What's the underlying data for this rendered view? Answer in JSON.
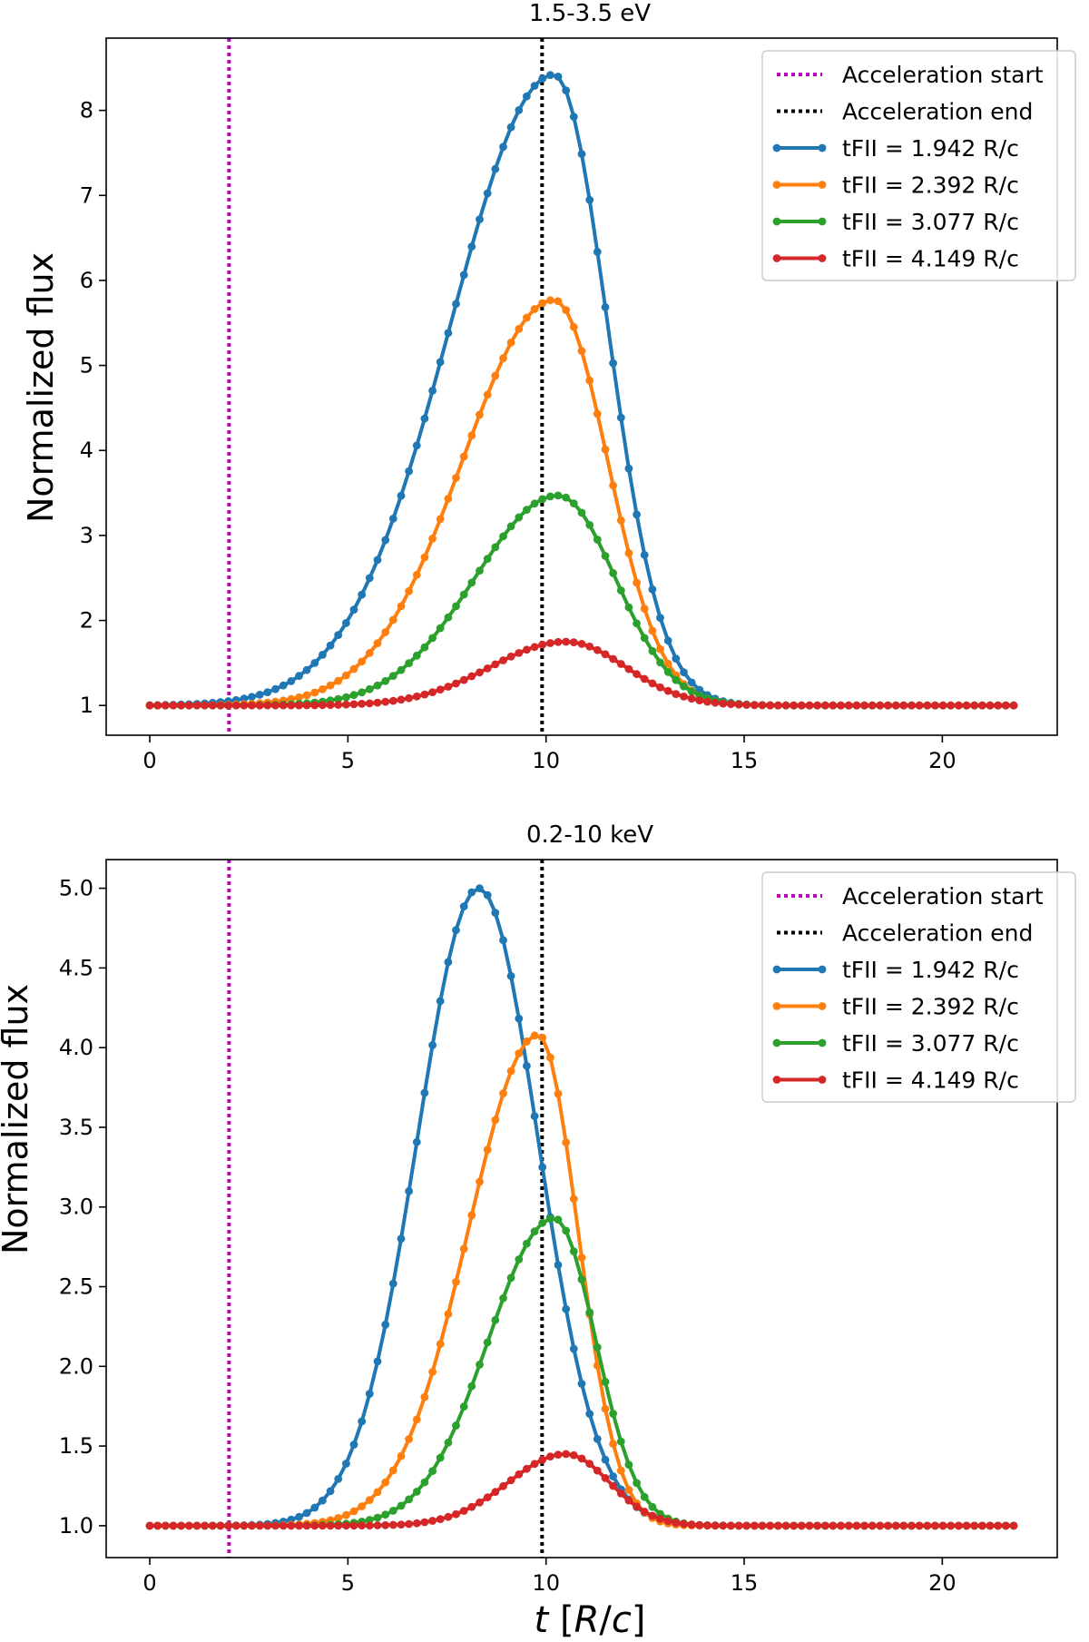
{
  "xlabel": "t [R/c]",
  "legend_labels": [
    "Acceleration start",
    "Acceleration end",
    "tFII = 1.942 R/c",
    "tFII = 2.392 R/c",
    "tFII = 3.077 R/c",
    "tFII = 4.149 R/c"
  ],
  "colors": {
    "accel_start": "#c000c0",
    "accel_end": "#000000",
    "s1": "#1f77b4",
    "s2": "#ff7f0e",
    "s3": "#2ca02c",
    "s4": "#d62728"
  },
  "chart_data": [
    {
      "type": "line",
      "title": "1.5-3.5 eV",
      "xlabel": "",
      "ylabel": "Normalized flux",
      "xlim": [
        -1.1,
        22.9
      ],
      "ylim": [
        0.65,
        8.85
      ],
      "xticks": [
        0,
        5,
        10,
        15,
        20
      ],
      "xtick_labels": [
        "0",
        "5",
        "10",
        "15",
        "20"
      ],
      "yticks": [
        1,
        2,
        3,
        4,
        5,
        6,
        7,
        8
      ],
      "ytick_labels": [
        "1",
        "2",
        "3",
        "4",
        "5",
        "6",
        "7",
        "8"
      ],
      "vlines": [
        {
          "name": "Acceleration start",
          "x": 2.0,
          "color": "#c000c0",
          "style": "dotted"
        },
        {
          "name": "Acceleration end",
          "x": 9.9,
          "color": "#000000",
          "style": "dotted"
        }
      ],
      "series": [
        {
          "name": "tFII = 1.942 R/c",
          "color": "#1f77b4",
          "peak_x": 10.2,
          "peak": 8.42,
          "sigma_left": 2.6,
          "sigma_right": 1.35,
          "points": [
            [
              0,
              1
            ],
            [
              2,
              1
            ],
            [
              4,
              1.01
            ],
            [
              5,
              1.28
            ],
            [
              6,
              2.05
            ],
            [
              7,
              3.5
            ],
            [
              8,
              5.3
            ],
            [
              9,
              6.9
            ],
            [
              10,
              8.25
            ],
            [
              10.2,
              8.42
            ],
            [
              10.5,
              8.3
            ],
            [
              11,
              7.55
            ],
            [
              12,
              4.6
            ],
            [
              13,
              2.3
            ],
            [
              14,
              1.35
            ],
            [
              15,
              1.1
            ],
            [
              16,
              1.03
            ],
            [
              18,
              1.0
            ],
            [
              21.8,
              1.0
            ]
          ]
        },
        {
          "name": "tFII = 2.392 R/c",
          "color": "#ff7f0e",
          "peak_x": 10.2,
          "peak": 5.77,
          "sigma_left": 2.3,
          "sigma_right": 1.35,
          "points": [
            [
              0,
              1
            ],
            [
              4,
              1
            ],
            [
              5,
              1.05
            ],
            [
              6,
              1.45
            ],
            [
              7,
              2.3
            ],
            [
              8,
              3.5
            ],
            [
              9,
              4.8
            ],
            [
              10,
              5.7
            ],
            [
              10.2,
              5.77
            ],
            [
              11,
              5.1
            ],
            [
              12,
              3.4
            ],
            [
              13,
              1.95
            ],
            [
              14,
              1.3
            ],
            [
              15,
              1.07
            ],
            [
              17,
              1.0
            ],
            [
              21.8,
              1.0
            ]
          ]
        },
        {
          "name": "tFII = 3.077 R/c",
          "color": "#2ca02c",
          "peak_x": 10.3,
          "peak": 3.47,
          "sigma_left": 2.1,
          "sigma_right": 1.45,
          "points": [
            [
              0,
              1
            ],
            [
              5,
              1
            ],
            [
              6,
              1.07
            ],
            [
              7,
              1.35
            ],
            [
              8,
              1.95
            ],
            [
              9,
              2.7
            ],
            [
              10,
              3.4
            ],
            [
              10.3,
              3.47
            ],
            [
              11,
              3.2
            ],
            [
              12,
              2.3
            ],
            [
              13,
              1.6
            ],
            [
              14,
              1.18
            ],
            [
              15,
              1.04
            ],
            [
              17,
              1.0
            ],
            [
              21.8,
              1.0
            ]
          ]
        },
        {
          "name": "tFII = 4.149 R/c",
          "color": "#d62728",
          "peak_x": 10.5,
          "peak": 1.75,
          "sigma_left": 1.9,
          "sigma_right": 1.5,
          "points": [
            [
              0,
              1
            ],
            [
              6,
              1
            ],
            [
              7,
              1.05
            ],
            [
              8,
              1.15
            ],
            [
              9,
              1.35
            ],
            [
              10,
              1.65
            ],
            [
              10.5,
              1.75
            ],
            [
              11,
              1.7
            ],
            [
              12,
              1.4
            ],
            [
              13,
              1.15
            ],
            [
              14,
              1.04
            ],
            [
              15,
              1.0
            ],
            [
              21.8,
              1.0
            ]
          ]
        }
      ]
    },
    {
      "type": "line",
      "title": "0.2-10 keV",
      "xlabel": "t [R/c]",
      "ylabel": "Normalized flux",
      "xlim": [
        -1.1,
        22.9
      ],
      "ylim": [
        0.8,
        5.18
      ],
      "xticks": [
        0,
        5,
        10,
        15,
        20
      ],
      "xtick_labels": [
        "0",
        "5",
        "10",
        "15",
        "20"
      ],
      "yticks": [
        1.0,
        1.5,
        2.0,
        2.5,
        3.0,
        3.5,
        4.0,
        4.5,
        5.0
      ],
      "ytick_labels": [
        "1.0",
        "1.5",
        "2.0",
        "2.5",
        "3.0",
        "3.5",
        "4.0",
        "4.5",
        "5.0"
      ],
      "vlines": [
        {
          "name": "Acceleration start",
          "x": 2.0,
          "color": "#c000c0",
          "style": "dotted"
        },
        {
          "name": "Acceleration end",
          "x": 9.9,
          "color": "#000000",
          "style": "dotted"
        }
      ],
      "series": [
        {
          "name": "tFII = 1.942 R/c",
          "color": "#1f77b4",
          "peak_x": 8.3,
          "peak": 5.0,
          "sigma_left": 1.55,
          "sigma_right": 1.5,
          "points": [
            [
              0,
              1
            ],
            [
              4,
              1
            ],
            [
              5,
              1.15
            ],
            [
              6,
              1.85
            ],
            [
              7,
              3.2
            ],
            [
              8,
              4.8
            ],
            [
              8.3,
              5.0
            ],
            [
              9,
              4.75
            ],
            [
              10,
              3.85
            ],
            [
              11,
              2.5
            ],
            [
              12,
              1.4
            ],
            [
              13,
              1.06
            ],
            [
              14,
              1.0
            ],
            [
              21.8,
              1.0
            ]
          ]
        },
        {
          "name": "tFII = 2.392 R/c",
          "color": "#ff7f0e",
          "peak_x": 9.8,
          "peak": 4.08,
          "sigma_left": 1.75,
          "sigma_right": 1.0,
          "points": [
            [
              0,
              1
            ],
            [
              4,
              1
            ],
            [
              5,
              1.03
            ],
            [
              6,
              1.35
            ],
            [
              7,
              2.05
            ],
            [
              8,
              2.95
            ],
            [
              9,
              3.75
            ],
            [
              9.8,
              4.08
            ],
            [
              10.5,
              3.75
            ],
            [
              11,
              3.3
            ],
            [
              12,
              1.9
            ],
            [
              13,
              1.15
            ],
            [
              14,
              1.02
            ],
            [
              21.8,
              1.0
            ]
          ]
        },
        {
          "name": "tFII = 3.077 R/c",
          "color": "#2ca02c",
          "peak_x": 10.2,
          "peak": 2.93,
          "sigma_left": 1.65,
          "sigma_right": 1.05,
          "points": [
            [
              0,
              1
            ],
            [
              5,
              1
            ],
            [
              6,
              1.05
            ],
            [
              7,
              1.35
            ],
            [
              8,
              1.85
            ],
            [
              9,
              2.45
            ],
            [
              10,
              2.9
            ],
            [
              10.2,
              2.93
            ],
            [
              11,
              2.5
            ],
            [
              12,
              1.65
            ],
            [
              13,
              1.15
            ],
            [
              14,
              1.02
            ],
            [
              21.8,
              1.0
            ]
          ]
        },
        {
          "name": "tFII = 4.149 R/c",
          "color": "#d62728",
          "peak_x": 10.5,
          "peak": 1.45,
          "sigma_left": 1.45,
          "sigma_right": 1.1,
          "points": [
            [
              0,
              1
            ],
            [
              7,
              1
            ],
            [
              8,
              1.05
            ],
            [
              9,
              1.18
            ],
            [
              10,
              1.38
            ],
            [
              10.5,
              1.45
            ],
            [
              11,
              1.4
            ],
            [
              12,
              1.15
            ],
            [
              13,
              1.03
            ],
            [
              14,
              1.0
            ],
            [
              21.8,
              1.0
            ]
          ]
        }
      ]
    }
  ]
}
